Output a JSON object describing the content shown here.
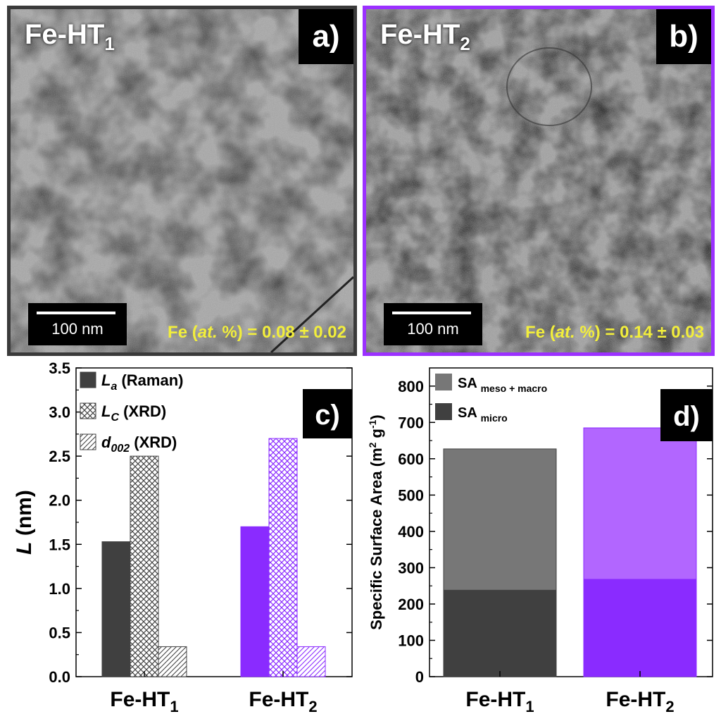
{
  "panels": {
    "a": {
      "title_main": "Fe-HT",
      "title_sub": "1",
      "letter": "a)",
      "scalebar": "100 nm",
      "fe_prefix": "Fe (",
      "fe_italic": "at.",
      "fe_suffix": " %) = 0.08 ± 0.02"
    },
    "b": {
      "title_main": "Fe-HT",
      "title_sub": "2",
      "letter": "b)",
      "scalebar": "100 nm",
      "fe_prefix": "Fe (",
      "fe_italic": "at.",
      "fe_suffix": " %) = 0.14 ± 0.03"
    }
  },
  "colors": {
    "gray_dark": "#404040",
    "gray_mid": "#777777",
    "purple": "#8a2bff",
    "purple_light": "#b266ff",
    "frame_b": "#9b30ff"
  },
  "chart_data": [
    {
      "type": "bar",
      "letter": "c)",
      "categories_main": [
        "Fe-HT",
        "Fe-HT"
      ],
      "categories_sub": [
        "1",
        "2"
      ],
      "ylabel": "L (nm)",
      "ylim": [
        0,
        3.5
      ],
      "yticks": [
        "0.0",
        "0.5",
        "1.0",
        "1.5",
        "2.0",
        "2.5",
        "3.0",
        "3.5"
      ],
      "series": [
        {
          "name_main": "L",
          "name_sub": "a",
          "name_rest": " (Raman)",
          "values": [
            1.53,
            1.7
          ],
          "pattern": "solid"
        },
        {
          "name_main": "L",
          "name_sub": "C",
          "name_rest": " (XRD)",
          "values": [
            2.5,
            2.7
          ],
          "pattern": "crosshatch"
        },
        {
          "name_main": "d",
          "name_sub": "002",
          "name_rest": " (XRD)",
          "values": [
            0.34,
            0.34
          ],
          "pattern": "diagonal"
        }
      ],
      "legend": "top-left"
    },
    {
      "type": "bar",
      "stacked": true,
      "letter": "d)",
      "categories_main": [
        "Fe-HT",
        "Fe-HT"
      ],
      "categories_sub": [
        "1",
        "2"
      ],
      "ylabel_main": "Specific Surface Area (m",
      "ylabel_sup1": "2",
      "ylabel_mid": " g",
      "ylabel_sup2": "-1",
      "ylabel_end": ")",
      "ylim": [
        0,
        850
      ],
      "yticks": [
        "0",
        "100",
        "200",
        "300",
        "400",
        "500",
        "600",
        "700",
        "800"
      ],
      "series": [
        {
          "name_main": "SA",
          "name_sub": "micro",
          "values": [
            238,
            268
          ]
        },
        {
          "name_main": "SA",
          "name_sub": "meso + macro",
          "values": [
            389,
            417
          ]
        }
      ],
      "totals": [
        627,
        685
      ],
      "legend": "top-left"
    }
  ]
}
